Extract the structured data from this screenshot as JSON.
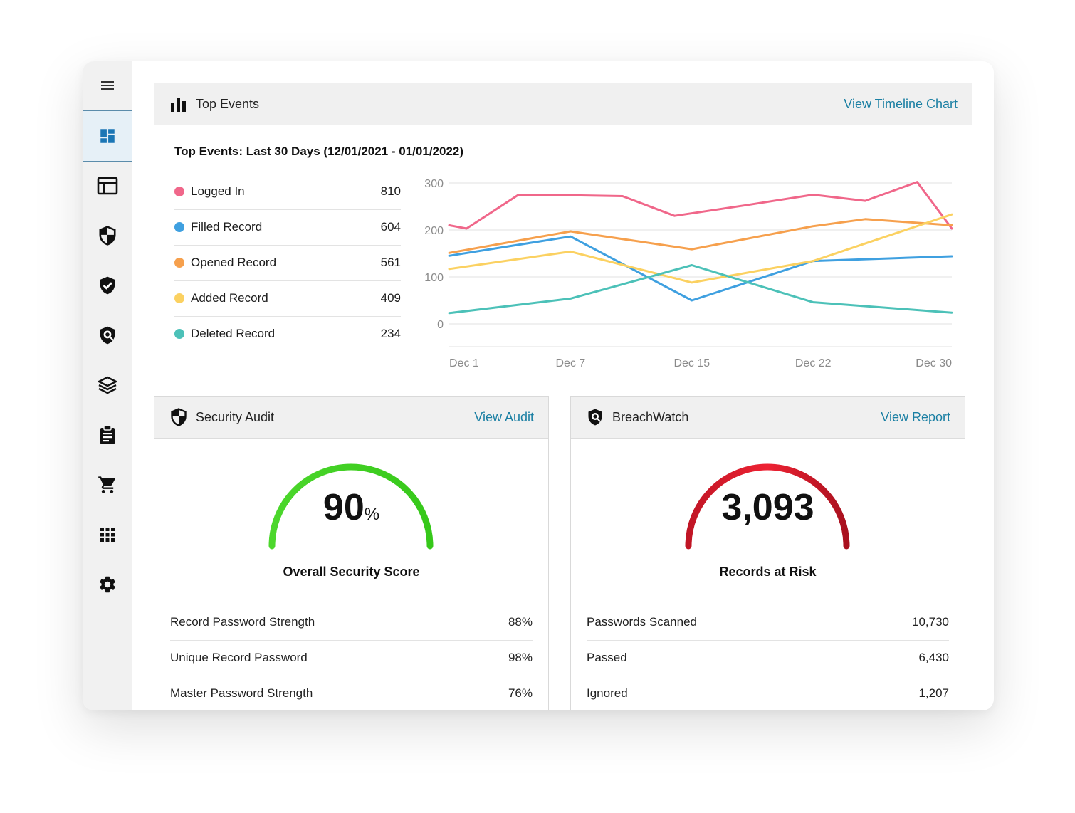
{
  "sidebar": {
    "menu_icon": "hamburger-icon",
    "items": [
      {
        "key": "dashboard",
        "icon": "dashboard-icon",
        "active": true
      },
      {
        "key": "reports",
        "icon": "layout-icon",
        "active": false
      },
      {
        "key": "security",
        "icon": "shield-half-icon",
        "active": false
      },
      {
        "key": "compliance",
        "icon": "shield-check-icon",
        "active": false
      },
      {
        "key": "breachwatch",
        "icon": "shield-eye-icon",
        "active": false
      },
      {
        "key": "layers",
        "icon": "layers-icon",
        "active": false
      },
      {
        "key": "audit",
        "icon": "clipboard-icon",
        "active": false
      },
      {
        "key": "store",
        "icon": "cart-icon",
        "active": false
      },
      {
        "key": "apps",
        "icon": "apps-grid-icon",
        "active": false
      },
      {
        "key": "settings",
        "icon": "gear-icon",
        "active": false
      }
    ]
  },
  "top_events": {
    "title": "Top Events",
    "link": "View Timeline Chart",
    "subtitle": "Top Events: Last 30 Days (12/01/2021 - 01/01/2022)",
    "legend": [
      {
        "label": "Logged In",
        "value": "810",
        "color": "#f0678a"
      },
      {
        "label": "Filled Record",
        "value": "604",
        "color": "#3fa0e0"
      },
      {
        "label": "Opened Record",
        "value": "561",
        "color": "#f6a04d"
      },
      {
        "label": "Added Record",
        "value": "409",
        "color": "#fbd161"
      },
      {
        "label": "Deleted Record",
        "value": "234",
        "color": "#4cc1b8"
      }
    ]
  },
  "chart_data": {
    "type": "line",
    "ylim": [
      0,
      300
    ],
    "yticks": [
      "300",
      "200",
      "100",
      "0"
    ],
    "xticks": [
      "Dec 1",
      "Dec 7",
      "Dec 15",
      "Dec 22",
      "Dec 30"
    ],
    "grid": true,
    "series": [
      {
        "name": "Logged In",
        "color": "#f0678a",
        "points": [
          [
            1,
            210
          ],
          [
            2,
            203
          ],
          [
            5,
            275
          ],
          [
            8,
            274
          ],
          [
            11,
            272
          ],
          [
            14,
            230
          ],
          [
            18,
            252
          ],
          [
            22,
            275
          ],
          [
            25,
            262
          ],
          [
            28,
            302
          ],
          [
            30,
            203
          ]
        ]
      },
      {
        "name": "Filled Record",
        "color": "#3fa0e0",
        "points": [
          [
            1,
            145
          ],
          [
            8,
            186
          ],
          [
            15,
            50
          ],
          [
            22,
            134
          ],
          [
            30,
            144
          ]
        ]
      },
      {
        "name": "Opened Record",
        "color": "#f6a04d",
        "points": [
          [
            1,
            151
          ],
          [
            8,
            197
          ],
          [
            15,
            159
          ],
          [
            22,
            208
          ],
          [
            25,
            223
          ],
          [
            30,
            210
          ]
        ]
      },
      {
        "name": "Added Record",
        "color": "#fbd161",
        "points": [
          [
            1,
            117
          ],
          [
            8,
            154
          ],
          [
            15,
            88
          ],
          [
            22,
            134
          ],
          [
            30,
            233
          ]
        ]
      },
      {
        "name": "Deleted Record",
        "color": "#4cc1b8",
        "points": [
          [
            1,
            23
          ],
          [
            8,
            54
          ],
          [
            15,
            125
          ],
          [
            22,
            46
          ],
          [
            30,
            24
          ]
        ]
      }
    ]
  },
  "security_audit": {
    "title": "Security Audit",
    "link": "View Audit",
    "score": "90",
    "score_unit": "%",
    "score_fraction": 0.9,
    "score_label": "Overall Security Score",
    "arc_color": "#39d31a",
    "rows": [
      {
        "label": "Record Password Strength",
        "value": "88%"
      },
      {
        "label": "Unique Record Password",
        "value": "98%"
      },
      {
        "label": "Master Password Strength",
        "value": "76%"
      }
    ]
  },
  "breachwatch": {
    "title": "BreachWatch",
    "link": "View Report",
    "count": "3,093",
    "count_label": "Records at Risk",
    "arc_color": "#d11f2f",
    "rows": [
      {
        "label": "Passwords Scanned",
        "value": "10,730"
      },
      {
        "label": "Passed",
        "value": "6,430"
      },
      {
        "label": "Ignored",
        "value": "1,207"
      }
    ]
  }
}
